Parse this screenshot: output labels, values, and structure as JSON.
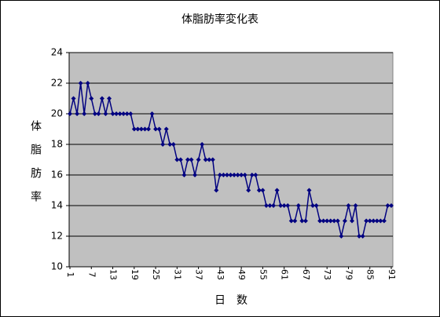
{
  "chart_data": {
    "type": "line",
    "title": "体脂肪率変化表",
    "ylabel": "体 脂 肪 率",
    "xlabel": "日　数",
    "categories": [
      1,
      null,
      null,
      null,
      null,
      null,
      7,
      null,
      null,
      null,
      null,
      null,
      13,
      null,
      null,
      null,
      null,
      null,
      19,
      null,
      null,
      null,
      null,
      null,
      25,
      null,
      null,
      null,
      null,
      null,
      31,
      null,
      null,
      null,
      null,
      null,
      37,
      null,
      null,
      null,
      null,
      null,
      43,
      null,
      null,
      null,
      null,
      null,
      49,
      null,
      null,
      null,
      null,
      null,
      55,
      null,
      null,
      null,
      null,
      null,
      61,
      null,
      null,
      null,
      null,
      null,
      67,
      null,
      null,
      null,
      null,
      null,
      73,
      null,
      null,
      null,
      null,
      null,
      79,
      null,
      null,
      null,
      null,
      null,
      85,
      null,
      null,
      null,
      null,
      null,
      91
    ],
    "values": [
      20,
      21,
      20,
      22,
      20,
      22,
      21,
      20,
      20,
      21,
      20,
      21,
      20,
      20,
      20,
      20,
      20,
      20,
      19,
      19,
      19,
      19,
      19,
      20,
      19,
      19,
      18,
      19,
      18,
      18,
      17,
      17,
      16,
      17,
      17,
      16,
      17,
      18,
      17,
      17,
      17,
      15,
      16,
      16,
      16,
      16,
      16,
      16,
      16,
      16,
      15,
      16,
      16,
      15,
      15,
      14,
      14,
      14,
      15,
      14,
      14,
      14,
      13,
      13,
      14,
      13,
      13,
      15,
      14,
      14,
      13,
      13,
      13,
      13,
      13,
      13,
      12,
      13,
      14,
      13,
      14,
      12,
      12,
      13,
      13,
      13,
      13,
      13,
      13,
      14,
      14
    ],
    "color": "#000080",
    "plot_background": "#c0c0c0",
    "ylim": [
      10,
      24
    ],
    "yticks": [
      10,
      12,
      14,
      16,
      18,
      20,
      22,
      24
    ],
    "grid": true
  }
}
